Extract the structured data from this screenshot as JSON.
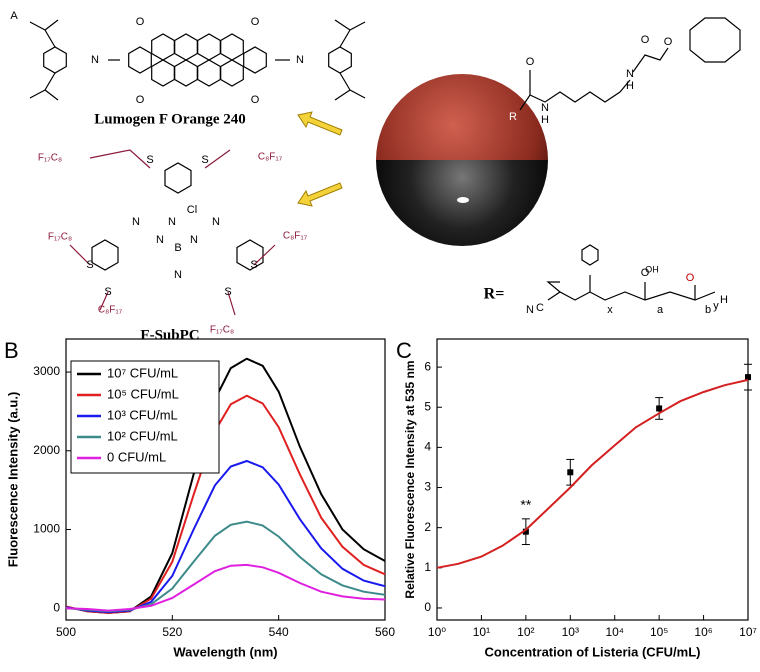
{
  "panel_labels": [
    "A",
    "B",
    "C"
  ],
  "structures": {
    "lumogen": {
      "name": "Lumogen F Orange 240",
      "atoms": [
        "O",
        "O",
        "N",
        "N",
        "O",
        "O"
      ]
    },
    "subpc": {
      "name": "F-SubPC",
      "atoms": [
        "S",
        "S",
        "F₁₇C₈",
        "C₈F₁₇",
        "N",
        "N",
        "N",
        "N",
        "N",
        "B",
        "Cl",
        "N",
        "F₁₇C₈",
        "C₈F₁₇",
        "S",
        "S",
        "S",
        "S",
        "C₈F₁₇",
        "F₁₇C₈"
      ]
    },
    "linker": {
      "atoms": [
        "O",
        "R",
        "N",
        "H",
        "N",
        "H",
        "O",
        "O"
      ]
    },
    "polymer": {
      "label": "R=",
      "atoms": [
        "N",
        "C",
        "x",
        "OH",
        "O",
        "a",
        "O",
        "b",
        "y",
        "H"
      ]
    }
  },
  "chart_data": [
    {
      "type": "line",
      "x_label": "Wavelength (nm)",
      "y_label": "Fluorescence Intensity (a.u.)",
      "x": [
        500,
        504,
        508,
        512,
        516,
        520,
        524,
        528,
        531,
        534,
        537,
        540,
        544,
        548,
        552,
        556,
        560
      ],
      "series": [
        {
          "name": "10⁷ CFU/mL",
          "color": "#000000",
          "values": [
            20,
            -40,
            -60,
            -40,
            150,
            700,
            1700,
            2650,
            3050,
            3170,
            3080,
            2750,
            2050,
            1450,
            1000,
            750,
            600
          ]
        },
        {
          "name": "10⁵ CFU/mL",
          "color": "#e02020",
          "values": [
            20,
            -40,
            -60,
            -40,
            120,
            590,
            1440,
            2250,
            2590,
            2700,
            2600,
            2300,
            1700,
            1150,
            780,
            550,
            430
          ]
        },
        {
          "name": "10³ CFU/mL",
          "color": "#1a1aee",
          "values": [
            10,
            -30,
            -50,
            -30,
            80,
            410,
            1000,
            1560,
            1800,
            1870,
            1790,
            1570,
            1130,
            760,
            500,
            350,
            280
          ]
        },
        {
          "name": "10² CFU/mL",
          "color": "#3d8a8a",
          "values": [
            0,
            -20,
            -40,
            -20,
            50,
            250,
            590,
            920,
            1060,
            1100,
            1050,
            910,
            650,
            430,
            290,
            210,
            170
          ]
        },
        {
          "name": "0 CFU/mL",
          "color": "#e020e0",
          "values": [
            0,
            -10,
            -30,
            -10,
            30,
            130,
            300,
            470,
            540,
            550,
            520,
            450,
            320,
            210,
            150,
            120,
            110
          ]
        }
      ],
      "xlim": [
        500,
        560
      ],
      "xticks": [
        500,
        520,
        540,
        560
      ],
      "ylim": [
        -150,
        3420
      ],
      "yticks": [
        0,
        1000,
        2000,
        3000
      ],
      "legend": "upper left"
    },
    {
      "type": "scatter",
      "x_label": "Concentration of Listeria (CFU/mL)",
      "y_label": "Relative Fluorescence Intensity at 535 nm",
      "xscale": "log",
      "series": [
        {
          "type": "scatter",
          "color": "#000000",
          "x": [
            100,
            1000,
            100000,
            10000000
          ],
          "values": [
            1.9,
            3.38,
            4.97,
            5.75
          ],
          "errors": [
            0.32,
            0.32,
            0.27,
            0.32
          ]
        },
        {
          "type": "line",
          "color": "#d42020",
          "x": [
            1,
            3,
            10,
            30,
            100,
            300,
            1000,
            3000,
            10000,
            30000,
            100000,
            300000,
            1000000,
            3000000,
            10000000
          ],
          "values": [
            1.0,
            1.1,
            1.28,
            1.55,
            1.95,
            2.45,
            3.0,
            3.55,
            4.05,
            4.5,
            4.85,
            5.15,
            5.38,
            5.55,
            5.68
          ]
        }
      ],
      "annotations": [
        {
          "text": "**",
          "x": 100,
          "y": 2.55
        }
      ],
      "xlim": [
        1,
        10000000
      ],
      "xticks": [
        {
          "value": 1,
          "label": "10⁰"
        },
        {
          "value": 10,
          "label": "10¹"
        },
        {
          "value": 100,
          "label": "10²"
        },
        {
          "value": 1000,
          "label": "10³"
        },
        {
          "value": 10000,
          "label": "10⁴"
        },
        {
          "value": 100000,
          "label": "10⁵"
        },
        {
          "value": 1000000,
          "label": "10⁶"
        },
        {
          "value": 10000000,
          "label": "10⁷"
        }
      ],
      "ylim": [
        -0.3,
        6.7
      ],
      "yticks": [
        0,
        1,
        2,
        3,
        4,
        5,
        6
      ]
    }
  ]
}
